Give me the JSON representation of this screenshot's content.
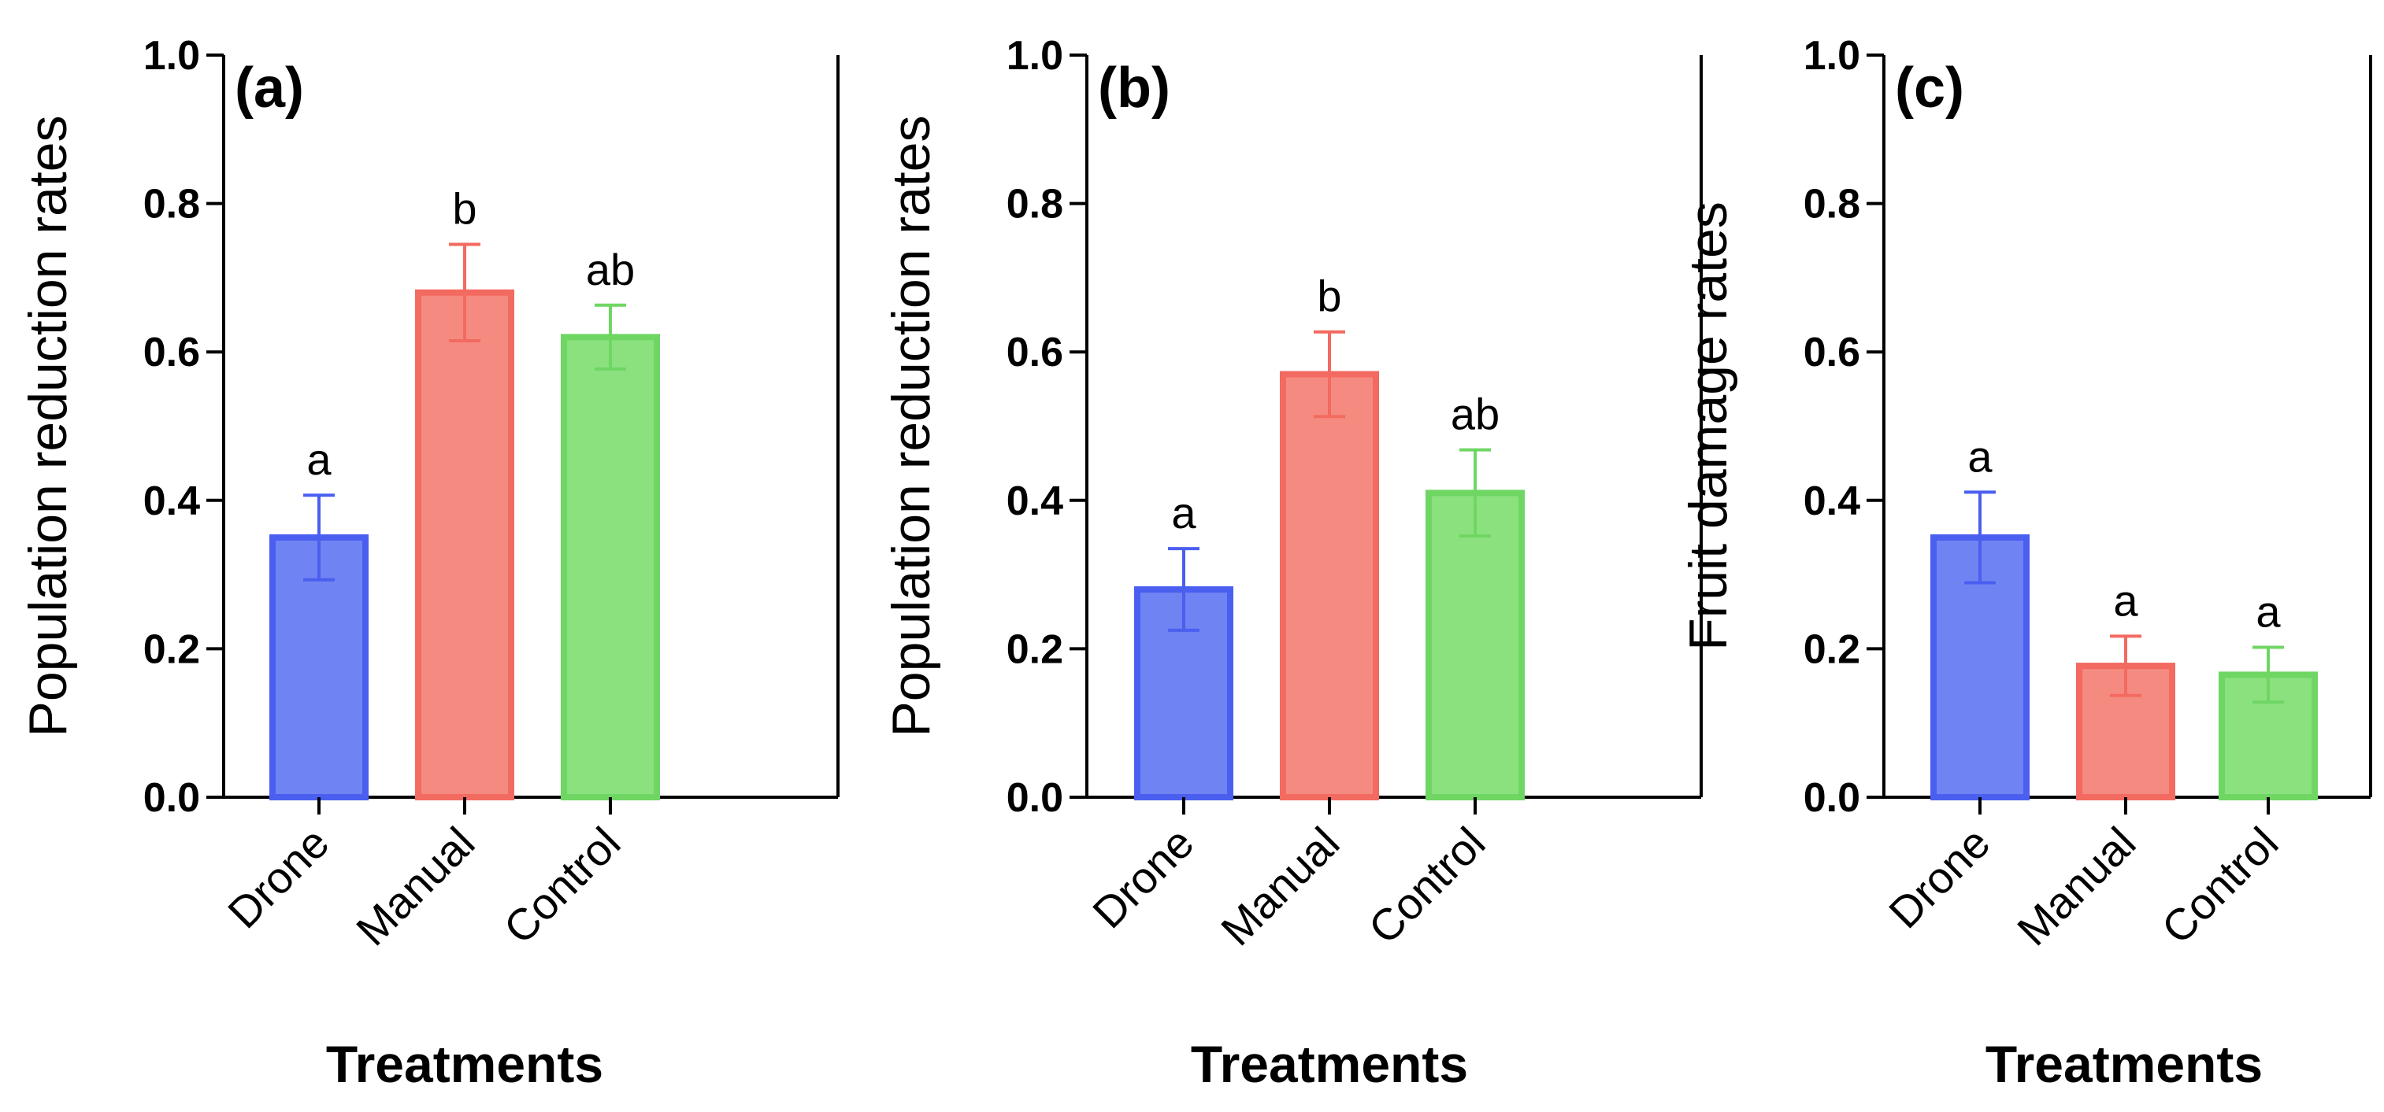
{
  "chart_data": [
    {
      "type": "bar",
      "panel_label": "(a)",
      "categories": [
        "Drone",
        "Manual",
        "Control"
      ],
      "values": [
        0.35,
        0.68,
        0.62
      ],
      "errors": [
        0.057,
        0.065,
        0.043
      ],
      "significance": [
        "a",
        "b",
        "ab"
      ],
      "xlabel": "Treatments",
      "ylabel": "Population reduction rates",
      "ylim": [
        0,
        1
      ],
      "yticks": [
        "0.0",
        "0.2",
        "0.4",
        "0.6",
        "0.8",
        "1.0"
      ],
      "grid": false
    },
    {
      "type": "bar",
      "panel_label": "(b)",
      "categories": [
        "Drone",
        "Manual",
        "Control"
      ],
      "values": [
        0.28,
        0.57,
        0.41
      ],
      "errors": [
        0.055,
        0.057,
        0.058
      ],
      "significance": [
        "a",
        "b",
        "ab"
      ],
      "xlabel": "Treatments",
      "ylabel": "Population reduction rates",
      "ylim": [
        0,
        1
      ],
      "yticks": [
        "0.0",
        "0.2",
        "0.4",
        "0.6",
        "0.8",
        "1.0"
      ],
      "grid": false
    },
    {
      "type": "bar",
      "panel_label": "(c)",
      "categories": [
        "Drone",
        "Manual",
        "Control"
      ],
      "values": [
        0.35,
        0.177,
        0.165
      ],
      "errors": [
        0.061,
        0.04,
        0.037
      ],
      "significance": [
        "a",
        "a",
        "a"
      ],
      "xlabel": "Treatments",
      "ylabel": "Fruit damage rates",
      "ylim": [
        0,
        1
      ],
      "yticks": [
        "0.0",
        "0.2",
        "0.4",
        "0.6",
        "0.8",
        "1.0"
      ],
      "grid": false
    }
  ],
  "colors": {
    "fill": [
      "#7083f2",
      "#f58a80",
      "#8ae17e"
    ],
    "stroke": [
      "#4a5ff0",
      "#f36a60",
      "#6fd664"
    ]
  }
}
